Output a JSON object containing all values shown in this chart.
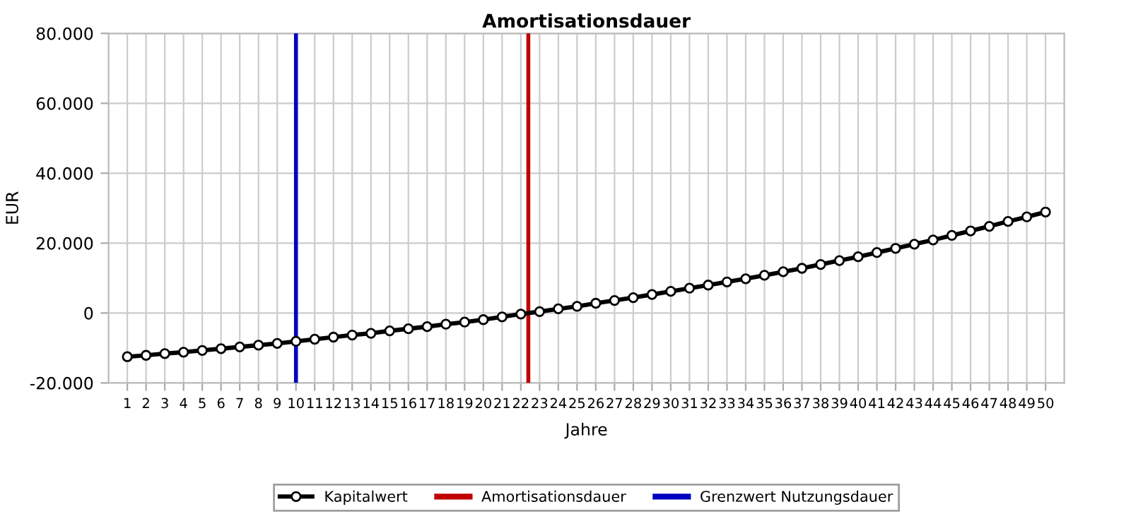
{
  "chart_data": {
    "type": "line",
    "title": "Amortisationsdauer",
    "xlabel": "Jahre",
    "ylabel": "EUR",
    "x": [
      1,
      2,
      3,
      4,
      5,
      6,
      7,
      8,
      9,
      10,
      11,
      12,
      13,
      14,
      15,
      16,
      17,
      18,
      19,
      20,
      21,
      22,
      23,
      24,
      25,
      26,
      27,
      28,
      29,
      30,
      31,
      32,
      33,
      34,
      35,
      36,
      37,
      38,
      39,
      40,
      41,
      42,
      43,
      44,
      45,
      46,
      47,
      48,
      49,
      50
    ],
    "series": [
      {
        "name": "Kapitalwert",
        "color": "#000000",
        "values": [
          -12500,
          -12100,
          -11600,
          -11200,
          -10700,
          -10200,
          -9700,
          -9200,
          -8700,
          -8100,
          -7500,
          -6900,
          -6300,
          -5800,
          -5100,
          -4500,
          -3900,
          -3200,
          -2600,
          -1900,
          -1100,
          -300,
          400,
          1200,
          1900,
          2800,
          3600,
          4400,
          5300,
          6200,
          7100,
          8000,
          8900,
          9800,
          10800,
          11800,
          12800,
          13900,
          15000,
          16100,
          17300,
          18500,
          19700,
          20900,
          22200,
          23500,
          24800,
          26200,
          27500,
          28900
        ]
      }
    ],
    "ref_lines": [
      {
        "axis": "x",
        "value": 22.4,
        "label": "Amortisationsdauer",
        "color": "#c00000"
      },
      {
        "axis": "x",
        "value": 10,
        "label": "Grenzwert Nutzungsdauer",
        "color": "#0000c0"
      }
    ],
    "xlim": [
      0,
      51
    ],
    "xticks": [
      1,
      2,
      3,
      4,
      5,
      6,
      7,
      8,
      9,
      10,
      11,
      12,
      13,
      14,
      15,
      16,
      17,
      18,
      19,
      20,
      21,
      22,
      23,
      24,
      25,
      26,
      27,
      28,
      29,
      30,
      31,
      32,
      33,
      34,
      35,
      36,
      37,
      38,
      39,
      40,
      41,
      42,
      43,
      44,
      45,
      46,
      47,
      48,
      49,
      50
    ],
    "ylim": [
      -20000,
      80000
    ],
    "yticks": [
      {
        "value": -20000,
        "label": "-20.000"
      },
      0,
      {
        "value": 20000,
        "label": "20.000"
      },
      {
        "value": 40000,
        "label": "40.000"
      },
      {
        "value": 60000,
        "label": "60.000"
      },
      {
        "value": 80000,
        "label": "80.000"
      }
    ],
    "grid": true,
    "legend": "bottom",
    "marker": "circle",
    "line_style": "solid"
  }
}
